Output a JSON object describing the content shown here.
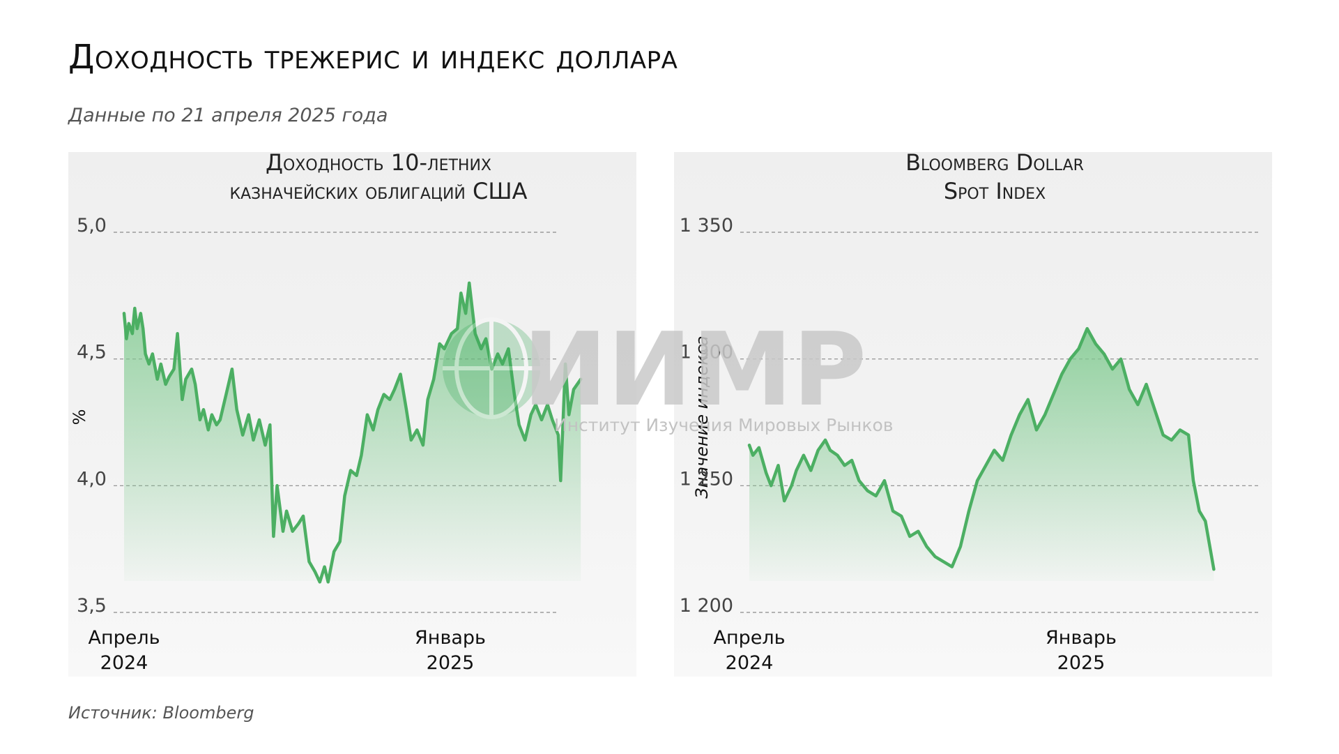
{
  "page": {
    "title": "Доходность трежерис и индекс доллара",
    "subtitle": "Данные по 21 апреля 2025 года",
    "source": "Источник: Bloomberg"
  },
  "watermark": {
    "logo_text": "ИИМР",
    "tagline": "Институт Изучения Мировых Рынков"
  },
  "colors": {
    "line": "#4caf63",
    "fill_top": "#7fca8f",
    "grid": "#8a8a8a"
  },
  "chart_data": [
    {
      "type": "area",
      "title_lines": [
        "Доходность 10-летних",
        "казначейских облигаций США"
      ],
      "ylabel": "%",
      "ylim": [
        3.5,
        5.0
      ],
      "yticks": [
        3.5,
        4.0,
        4.5,
        5.0
      ],
      "ytick_labels": [
        "3,5",
        "4,0",
        "4,5",
        "5,0"
      ],
      "xlim": [
        "2024-04-01",
        "2025-04-21"
      ],
      "xticks": [
        {
          "date": "2024-04-01",
          "label": [
            "Апрель",
            "2024"
          ]
        },
        {
          "date": "2025-01-01",
          "label": [
            "Январь",
            "2025"
          ]
        }
      ],
      "grid": "horizontal-dashed",
      "series": [
        {
          "x": [
            "2024-04-01",
            "2024-04-03",
            "2024-04-05",
            "2024-04-08",
            "2024-04-10",
            "2024-04-12",
            "2024-04-15",
            "2024-04-17",
            "2024-04-19",
            "2024-04-22",
            "2024-04-25",
            "2024-04-29",
            "2024-05-02",
            "2024-05-06",
            "2024-05-09",
            "2024-05-13",
            "2024-05-16",
            "2024-05-20",
            "2024-05-23",
            "2024-05-28",
            "2024-05-31",
            "2024-06-04",
            "2024-06-07",
            "2024-06-11",
            "2024-06-14",
            "2024-06-18",
            "2024-06-21",
            "2024-06-26",
            "2024-07-01",
            "2024-07-05",
            "2024-07-10",
            "2024-07-15",
            "2024-07-19",
            "2024-07-24",
            "2024-07-29",
            "2024-08-02",
            "2024-08-05",
            "2024-08-08",
            "2024-08-13",
            "2024-08-16",
            "2024-08-21",
            "2024-08-26",
            "2024-08-30",
            "2024-09-04",
            "2024-09-09",
            "2024-09-13",
            "2024-09-17",
            "2024-09-20",
            "2024-09-25",
            "2024-09-30",
            "2024-10-04",
            "2024-10-09",
            "2024-10-14",
            "2024-10-18",
            "2024-10-23",
            "2024-10-28",
            "2024-11-01",
            "2024-11-06",
            "2024-11-11",
            "2024-11-15",
            "2024-11-20",
            "2024-11-25",
            "2024-11-29",
            "2024-12-04",
            "2024-12-09",
            "2024-12-13",
            "2024-12-18",
            "2024-12-23",
            "2024-12-27",
            "2025-01-02",
            "2025-01-07",
            "2025-01-10",
            "2025-01-14",
            "2025-01-17",
            "2025-01-22",
            "2025-01-27",
            "2025-01-31",
            "2025-02-05",
            "2025-02-10",
            "2025-02-14",
            "2025-02-19",
            "2025-02-24",
            "2025-02-28",
            "2025-03-05",
            "2025-03-10",
            "2025-03-14",
            "2025-03-19",
            "2025-03-24",
            "2025-03-28",
            "2025-04-02",
            "2025-04-04",
            "2025-04-08",
            "2025-04-11",
            "2025-04-15",
            "2025-04-21"
          ],
          "y": [
            4.68,
            4.58,
            4.64,
            4.6,
            4.7,
            4.62,
            4.68,
            4.62,
            4.52,
            4.48,
            4.52,
            4.42,
            4.48,
            4.4,
            4.43,
            4.46,
            4.6,
            4.34,
            4.42,
            4.46,
            4.4,
            4.26,
            4.3,
            4.22,
            4.28,
            4.24,
            4.26,
            4.36,
            4.46,
            4.3,
            4.2,
            4.28,
            4.18,
            4.26,
            4.16,
            4.24,
            3.8,
            4.0,
            3.82,
            3.9,
            3.82,
            3.85,
            3.88,
            3.7,
            3.66,
            3.62,
            3.68,
            3.62,
            3.74,
            3.78,
            3.96,
            4.06,
            4.04,
            4.12,
            4.28,
            4.22,
            4.3,
            4.36,
            4.34,
            4.38,
            4.44,
            4.3,
            4.18,
            4.22,
            4.16,
            4.34,
            4.42,
            4.56,
            4.54,
            4.6,
            4.62,
            4.76,
            4.68,
            4.8,
            4.6,
            4.54,
            4.58,
            4.46,
            4.52,
            4.48,
            4.54,
            4.36,
            4.24,
            4.18,
            4.28,
            4.32,
            4.26,
            4.32,
            4.26,
            4.2,
            4.02,
            4.48,
            4.28,
            4.38,
            4.42
          ]
        }
      ]
    },
    {
      "type": "area",
      "title_lines": [
        "Bloomberg Dollar",
        "Spot Index"
      ],
      "ylabel": "Значение индекса",
      "ylim": [
        1200,
        1350
      ],
      "yticks": [
        1200,
        1250,
        1300,
        1350
      ],
      "ytick_labels": [
        "1 200",
        "1 250",
        "1 300",
        "1 350"
      ],
      "xlim": [
        "2024-04-01",
        "2025-04-21"
      ],
      "xticks": [
        {
          "date": "2024-04-01",
          "label": [
            "Апрель",
            "2024"
          ]
        },
        {
          "date": "2025-01-01",
          "label": [
            "Январь",
            "2025"
          ]
        }
      ],
      "grid": "horizontal-dashed",
      "series": [
        {
          "x": [
            "2024-04-01",
            "2024-04-04",
            "2024-04-09",
            "2024-04-15",
            "2024-04-19",
            "2024-04-25",
            "2024-04-30",
            "2024-05-06",
            "2024-05-10",
            "2024-05-16",
            "2024-05-22",
            "2024-05-28",
            "2024-06-03",
            "2024-06-07",
            "2024-06-13",
            "2024-06-19",
            "2024-06-25",
            "2024-07-01",
            "2024-07-08",
            "2024-07-15",
            "2024-07-22",
            "2024-07-29",
            "2024-08-05",
            "2024-08-12",
            "2024-08-19",
            "2024-08-26",
            "2024-09-02",
            "2024-09-09",
            "2024-09-16",
            "2024-09-23",
            "2024-09-30",
            "2024-10-07",
            "2024-10-14",
            "2024-10-21",
            "2024-10-28",
            "2024-11-04",
            "2024-11-11",
            "2024-11-18",
            "2024-11-25",
            "2024-12-02",
            "2024-12-09",
            "2024-12-16",
            "2024-12-23",
            "2024-12-30",
            "2025-01-06",
            "2025-01-13",
            "2025-01-20",
            "2025-01-27",
            "2025-02-03",
            "2025-02-10",
            "2025-02-17",
            "2025-02-24",
            "2025-03-03",
            "2025-03-10",
            "2025-03-17",
            "2025-03-24",
            "2025-03-31",
            "2025-04-04",
            "2025-04-09",
            "2025-04-14",
            "2025-04-21"
          ],
          "y": [
            1266,
            1262,
            1265,
            1255,
            1250,
            1258,
            1244,
            1250,
            1256,
            1262,
            1256,
            1264,
            1268,
            1264,
            1262,
            1258,
            1260,
            1252,
            1248,
            1246,
            1252,
            1240,
            1238,
            1230,
            1232,
            1226,
            1222,
            1220,
            1218,
            1226,
            1240,
            1252,
            1258,
            1264,
            1260,
            1270,
            1278,
            1284,
            1272,
            1278,
            1286,
            1294,
            1300,
            1304,
            1312,
            1306,
            1302,
            1296,
            1300,
            1288,
            1282,
            1290,
            1280,
            1270,
            1268,
            1272,
            1270,
            1252,
            1240,
            1236,
            1217
          ]
        }
      ]
    }
  ]
}
